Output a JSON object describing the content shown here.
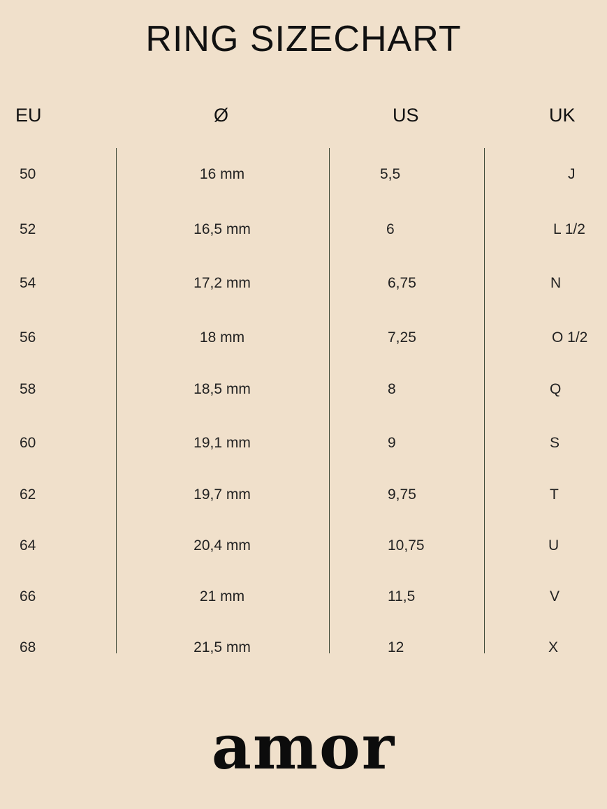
{
  "title": "RING SIZECHART",
  "headers": {
    "eu": "EU",
    "diameter": "Ø",
    "us": "US",
    "uk": "UK"
  },
  "rows": [
    {
      "eu": "50",
      "diameter": "16 mm",
      "us": "5,5",
      "uk": "J"
    },
    {
      "eu": "52",
      "diameter": "16,5 mm",
      "us": "6",
      "uk": "L 1/2"
    },
    {
      "eu": "54",
      "diameter": "17,2 mm",
      "us": "6,75",
      "uk": "N"
    },
    {
      "eu": "56",
      "diameter": "18 mm",
      "us": "7,25",
      "uk": "O 1/2"
    },
    {
      "eu": "58",
      "diameter": "18,5 mm",
      "us": "8",
      "uk": "Q"
    },
    {
      "eu": "60",
      "diameter": "19,1 mm",
      "us": "9",
      "uk": "S"
    },
    {
      "eu": "62",
      "diameter": "19,7 mm",
      "us": "9,75",
      "uk": "T"
    },
    {
      "eu": "64",
      "diameter": "20,4 mm",
      "us": "10,75",
      "uk": "U"
    },
    {
      "eu": "66",
      "diameter": "21 mm",
      "us": "11,5",
      "uk": "V"
    },
    {
      "eu": "68",
      "diameter": "21,5 mm",
      "us": "12",
      "uk": "X"
    }
  ],
  "logo": "amor",
  "colors": {
    "background": "#f0e0cb",
    "divider": "#3f4a38",
    "text": "#1a1a1a"
  }
}
